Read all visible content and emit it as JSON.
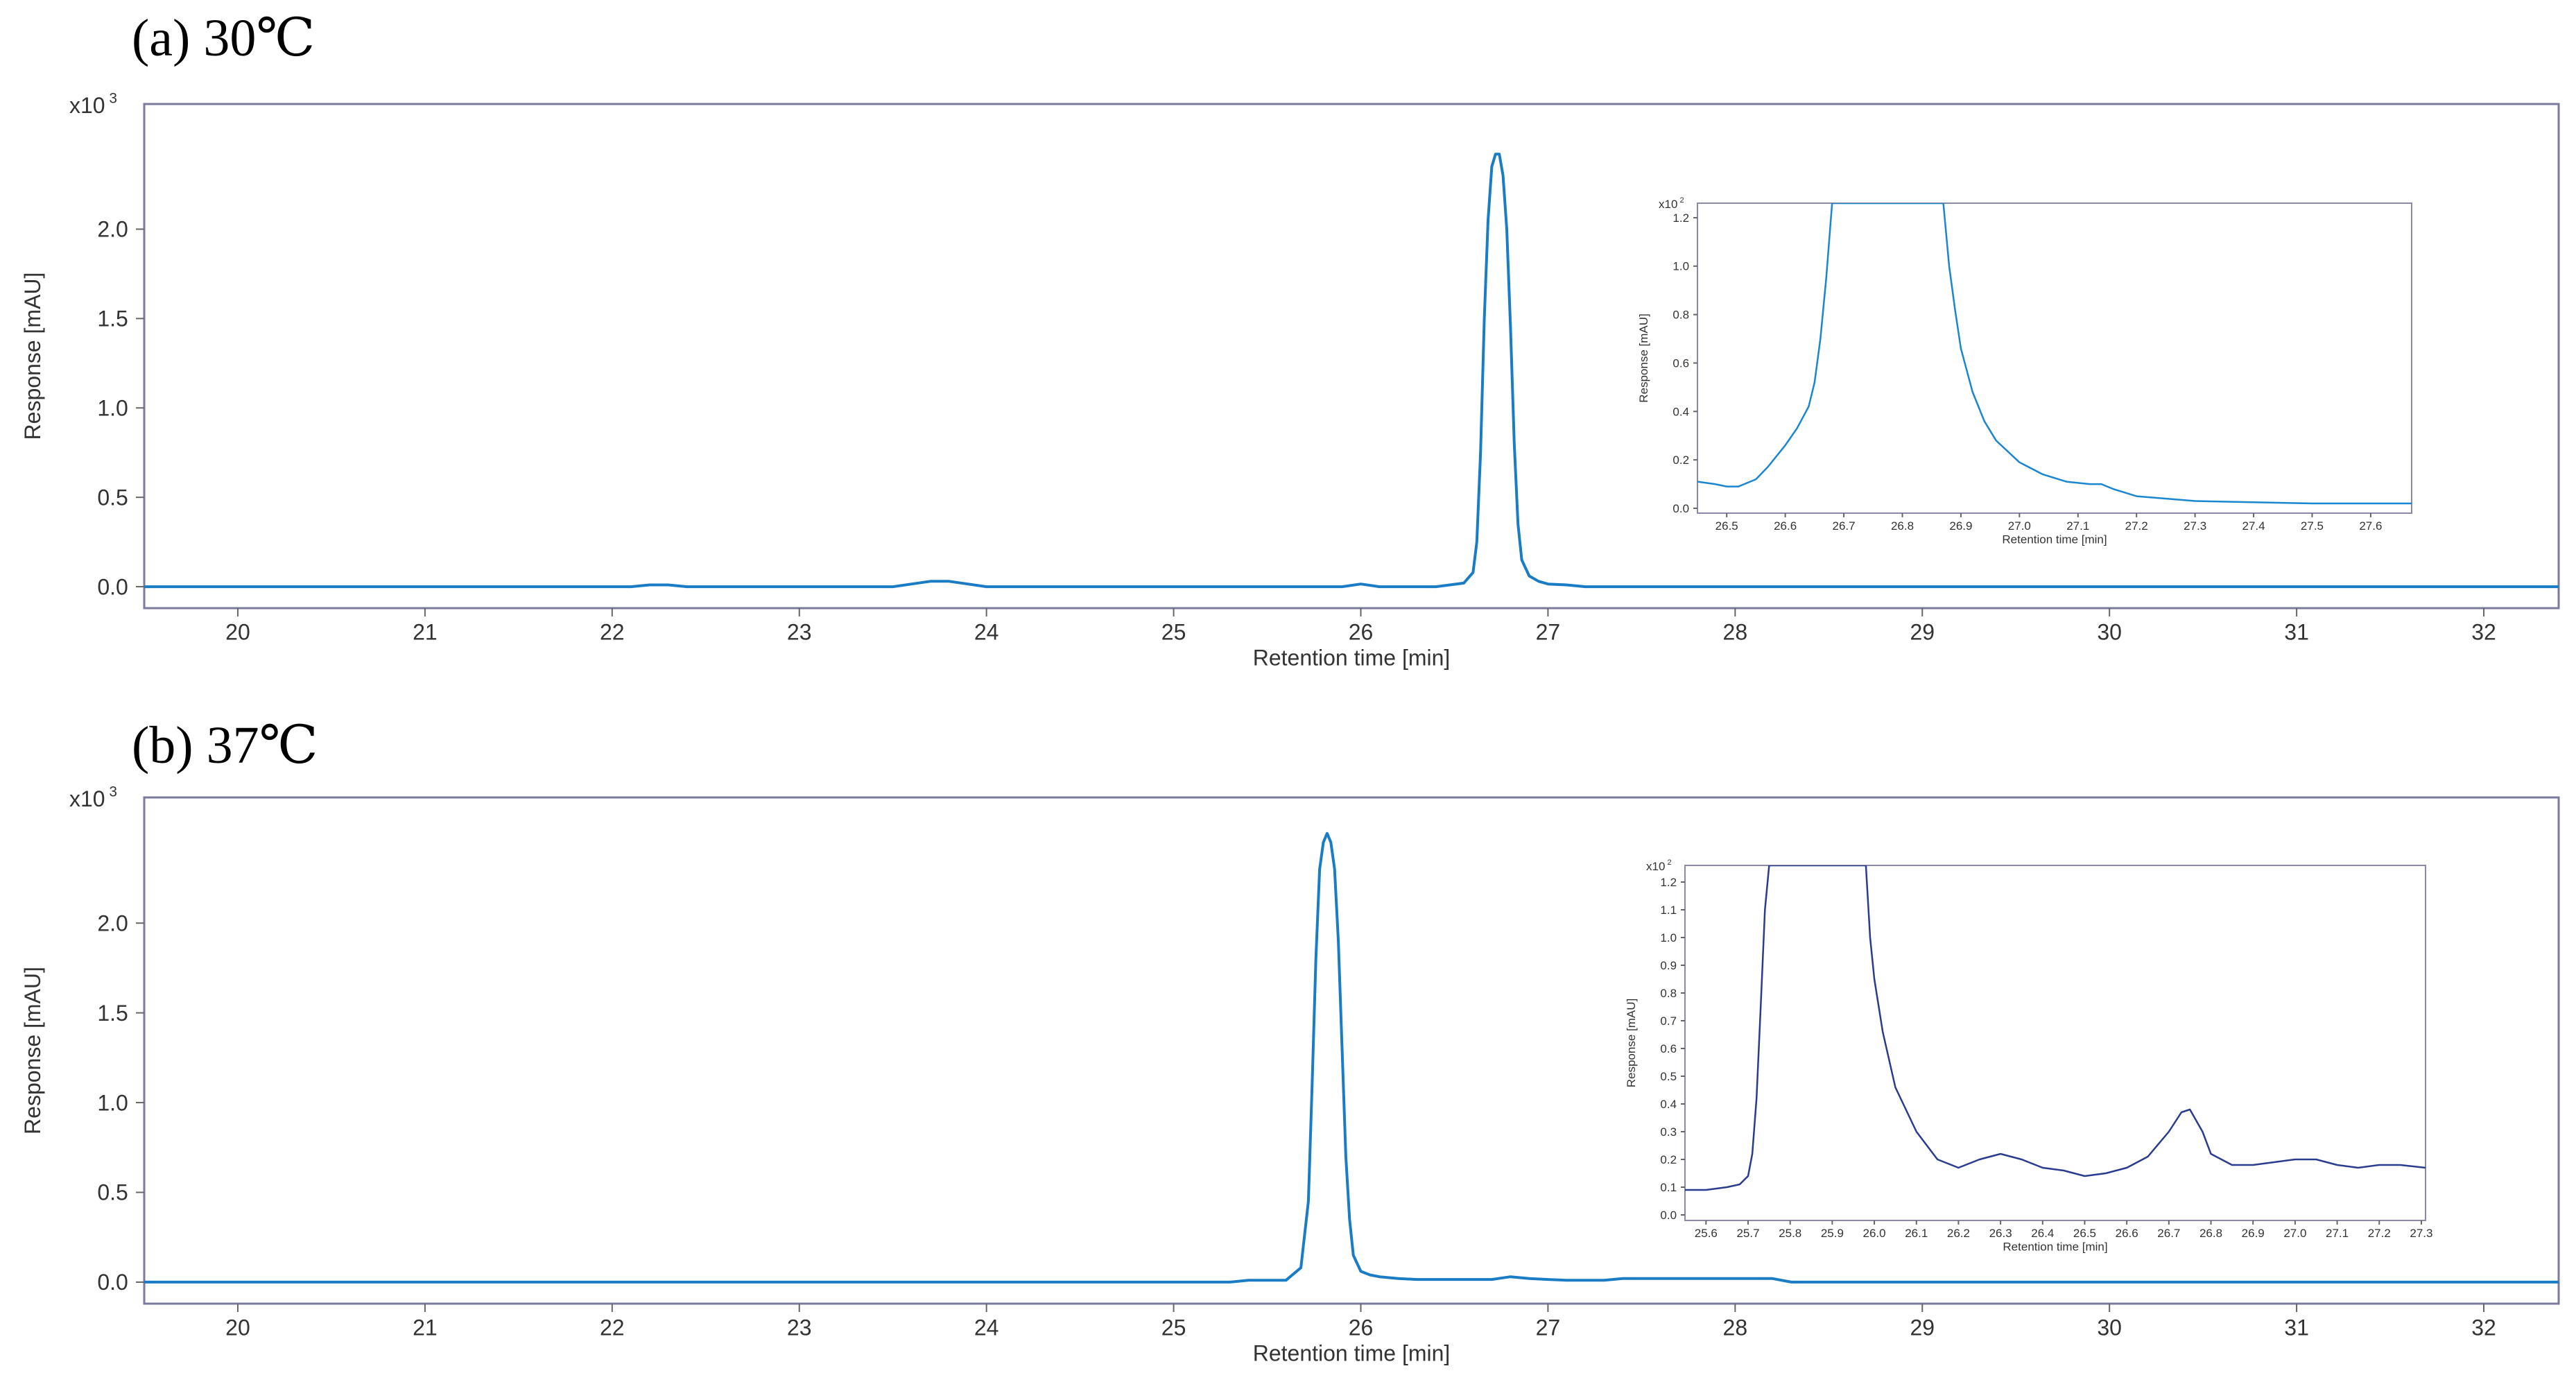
{
  "chart_data": [
    {
      "type": "line",
      "panel_title": "(a) 30℃",
      "xlabel": "Retention time [min]",
      "ylabel": "Response [mAU]",
      "y_multiplier": "x10 3",
      "xlim": [
        19.5,
        32.4
      ],
      "ylim": [
        -0.12,
        2.7
      ],
      "xticks": [
        "20",
        "21",
        "22",
        "23",
        "24",
        "25",
        "26",
        "27",
        "28",
        "29",
        "30",
        "31",
        "32"
      ],
      "yticks": [
        "0.0",
        "0.5",
        "1.0",
        "1.5",
        "2.0"
      ],
      "series": [
        {
          "color": "#1a7cc4",
          "x": [
            19.5,
            22.1,
            22.2,
            22.3,
            22.4,
            23.5,
            23.6,
            23.7,
            23.8,
            23.9,
            24.0,
            25.9,
            26.0,
            26.1,
            26.4,
            26.55,
            26.6,
            26.62,
            26.64,
            26.66,
            26.68,
            26.7,
            26.72,
            26.74,
            26.76,
            26.78,
            26.8,
            26.82,
            26.84,
            26.86,
            26.9,
            26.95,
            27.0,
            27.1,
            27.2,
            28.0,
            32.4
          ],
          "y": [
            0.0,
            0.0,
            0.01,
            0.01,
            0.0,
            0.0,
            0.015,
            0.03,
            0.03,
            0.015,
            0.0,
            0.0,
            0.015,
            0.0,
            0.0,
            0.02,
            0.08,
            0.25,
            0.75,
            1.5,
            2.05,
            2.35,
            2.42,
            2.42,
            2.3,
            2.0,
            1.45,
            0.8,
            0.35,
            0.15,
            0.06,
            0.03,
            0.015,
            0.01,
            0.0,
            0.0,
            0.0
          ]
        }
      ],
      "inset": {
        "xlabel": "Retention time [min]",
        "ylabel": "Response [mAU]",
        "y_multiplier": "x10 2",
        "xlim": [
          26.45,
          27.67
        ],
        "ylim": [
          -0.02,
          1.26
        ],
        "xticks": [
          "26.5",
          "26.6",
          "26.7",
          "26.8",
          "26.9",
          "27.0",
          "27.1",
          "27.2",
          "27.3",
          "27.4",
          "27.5",
          "27.6"
        ],
        "yticks": [
          "0.0",
          "0.2",
          "0.4",
          "0.6",
          "0.8",
          "1.0",
          "1.2"
        ],
        "series": [
          {
            "color": "#1a86d0",
            "x": [
              26.45,
              26.48,
              26.5,
              26.52,
              26.55,
              26.57,
              26.6,
              26.62,
              26.64,
              26.65,
              26.66,
              26.67,
              26.68,
              26.69,
              26.7,
              26.86,
              26.87,
              26.88,
              26.89,
              26.9,
              26.92,
              26.94,
              26.96,
              27.0,
              27.04,
              27.08,
              27.12,
              27.14,
              27.16,
              27.2,
              27.3,
              27.5,
              27.67
            ],
            "y": [
              0.11,
              0.1,
              0.09,
              0.09,
              0.12,
              0.17,
              0.26,
              0.33,
              0.42,
              0.52,
              0.7,
              0.95,
              1.26,
              1.26,
              1.26,
              1.26,
              1.26,
              1.0,
              0.82,
              0.66,
              0.48,
              0.36,
              0.28,
              0.19,
              0.14,
              0.11,
              0.1,
              0.1,
              0.08,
              0.05,
              0.03,
              0.02,
              0.02
            ]
          }
        ]
      }
    },
    {
      "type": "line",
      "panel_title": "(b) 37℃",
      "xlabel": "Retention time [min]",
      "ylabel": "Response [mAU]",
      "y_multiplier": "x10 3",
      "xlim": [
        19.5,
        32.4
      ],
      "ylim": [
        -0.12,
        2.7
      ],
      "xticks": [
        "20",
        "21",
        "22",
        "23",
        "24",
        "25",
        "26",
        "27",
        "28",
        "29",
        "30",
        "31",
        "32"
      ],
      "yticks": [
        "0.0",
        "0.5",
        "1.0",
        "1.5",
        "2.0"
      ],
      "series": [
        {
          "color": "#1a7cc4",
          "x": [
            19.5,
            25.3,
            25.4,
            25.5,
            25.6,
            25.68,
            25.72,
            25.74,
            25.76,
            25.78,
            25.8,
            25.82,
            25.84,
            25.86,
            25.88,
            25.9,
            25.92,
            25.94,
            25.96,
            26.0,
            26.05,
            26.1,
            26.2,
            26.3,
            26.7,
            26.8,
            26.9,
            27.0,
            27.1,
            27.3,
            27.4,
            27.8,
            28.2,
            28.3,
            32.4
          ],
          "y": [
            0.0,
            0.0,
            0.01,
            0.01,
            0.01,
            0.08,
            0.45,
            1.1,
            1.8,
            2.3,
            2.45,
            2.5,
            2.45,
            2.3,
            1.9,
            1.3,
            0.7,
            0.35,
            0.15,
            0.06,
            0.04,
            0.03,
            0.02,
            0.015,
            0.015,
            0.03,
            0.02,
            0.015,
            0.01,
            0.01,
            0.02,
            0.02,
            0.02,
            0.0,
            0.0
          ]
        }
      ],
      "inset": {
        "xlabel": "Retention time [min]",
        "ylabel": "Response [mAU]",
        "y_multiplier": "x10 2",
        "xlim": [
          25.55,
          27.31
        ],
        "ylim": [
          -0.02,
          1.26
        ],
        "xticks": [
          "25.6",
          "25.7",
          "25.8",
          "25.9",
          "26.0",
          "26.1",
          "26.2",
          "26.3",
          "26.4",
          "26.5",
          "26.6",
          "26.7",
          "26.8",
          "26.9",
          "27.0",
          "27.1",
          "27.2",
          "27.3"
        ],
        "yticks": [
          "0.0",
          "0.1",
          "0.2",
          "0.3",
          "0.4",
          "0.5",
          "0.6",
          "0.7",
          "0.8",
          "0.9",
          "1.0",
          "1.1",
          "1.2"
        ],
        "series": [
          {
            "color": "#2a3c8e",
            "x": [
              25.55,
              25.6,
              25.65,
              25.68,
              25.7,
              25.71,
              25.72,
              25.73,
              25.74,
              25.75,
              25.76,
              25.97,
              25.98,
              25.99,
              26.0,
              26.02,
              26.05,
              26.1,
              26.15,
              26.2,
              26.25,
              26.3,
              26.35,
              26.4,
              26.45,
              26.5,
              26.55,
              26.6,
              26.65,
              26.7,
              26.73,
              26.75,
              26.78,
              26.8,
              26.85,
              26.9,
              26.95,
              27.0,
              27.05,
              27.1,
              27.15,
              27.2,
              27.25,
              27.31
            ],
            "y": [
              0.09,
              0.09,
              0.1,
              0.11,
              0.14,
              0.22,
              0.42,
              0.75,
              1.1,
              1.26,
              1.26,
              1.26,
              1.26,
              1.0,
              0.85,
              0.66,
              0.46,
              0.3,
              0.2,
              0.17,
              0.2,
              0.22,
              0.2,
              0.17,
              0.16,
              0.14,
              0.15,
              0.17,
              0.21,
              0.3,
              0.37,
              0.38,
              0.3,
              0.22,
              0.18,
              0.18,
              0.19,
              0.2,
              0.2,
              0.18,
              0.17,
              0.18,
              0.18,
              0.17
            ]
          }
        ]
      }
    }
  ]
}
